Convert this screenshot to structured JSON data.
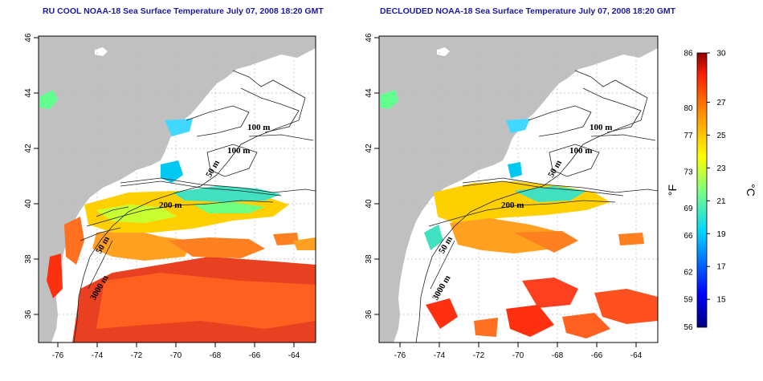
{
  "panels": [
    {
      "id": "left",
      "title": "RU COOL NOAA-18 Sea Surface Temperature July 07, 2008 18:20 GMT",
      "contour_labels": [
        "100 m",
        "100 m",
        "50 m",
        "200 m",
        "50 m",
        "3000 m"
      ]
    },
    {
      "id": "right",
      "title": "DECLOUDED NOAA-18 Sea Surface Temperature July 07, 2008 18:20 GMT",
      "contour_labels": [
        "100 m",
        "100 m",
        "50 m",
        "200 m",
        "50 m",
        "3000 m"
      ]
    }
  ],
  "axes": {
    "x_ticks": [
      "-76",
      "-74",
      "-72",
      "-70",
      "-68",
      "-66",
      "-64"
    ],
    "y_ticks": [
      "46",
      "44",
      "42",
      "40",
      "38",
      "36"
    ]
  },
  "colorbar": {
    "fahrenheit_label": "°F",
    "celsius_label": "°C",
    "fahrenheit_ticks": [
      "86",
      "80",
      "77",
      "73",
      "69",
      "66",
      "62",
      "59",
      "56"
    ],
    "celsius_ticks": [
      "30",
      "27",
      "25",
      "23",
      "21",
      "19",
      "17",
      "15"
    ],
    "range_celsius": [
      13.3,
      30
    ]
  },
  "colors": {
    "land": "#c0c0c0",
    "ocean_no_data": "#ffffff",
    "title": "#1a1aa0",
    "grid": "#bbbbbb"
  }
}
